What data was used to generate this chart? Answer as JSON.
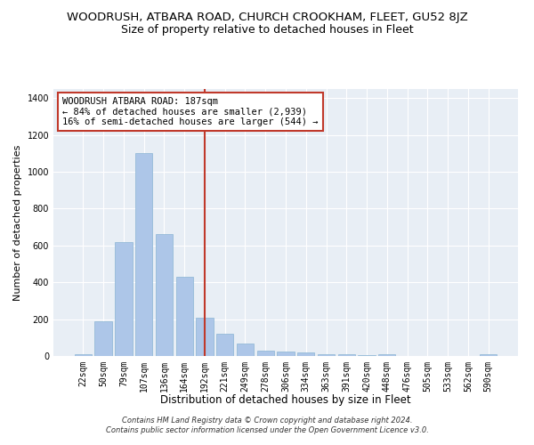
{
  "title": "WOODRUSH, ATBARA ROAD, CHURCH CROOKHAM, FLEET, GU52 8JZ",
  "subtitle": "Size of property relative to detached houses in Fleet",
  "xlabel": "Distribution of detached houses by size in Fleet",
  "ylabel": "Number of detached properties",
  "categories": [
    "22sqm",
    "50sqm",
    "79sqm",
    "107sqm",
    "136sqm",
    "164sqm",
    "192sqm",
    "221sqm",
    "249sqm",
    "278sqm",
    "306sqm",
    "334sqm",
    "363sqm",
    "391sqm",
    "420sqm",
    "448sqm",
    "476sqm",
    "505sqm",
    "533sqm",
    "562sqm",
    "590sqm"
  ],
  "values": [
    10,
    190,
    620,
    1100,
    660,
    430,
    210,
    120,
    70,
    30,
    25,
    20,
    10,
    8,
    3,
    8,
    2,
    0,
    0,
    0,
    8
  ],
  "bar_color": "#adc6e8",
  "bar_edge_color": "#8ab4d4",
  "vline_index": 6,
  "vline_color": "#c0392b",
  "annotation_text": "WOODRUSH ATBARA ROAD: 187sqm\n← 84% of detached houses are smaller (2,939)\n16% of semi-detached houses are larger (544) →",
  "annotation_box_color": "white",
  "annotation_box_edgecolor": "#c0392b",
  "ylim": [
    0,
    1450
  ],
  "yticks": [
    0,
    200,
    400,
    600,
    800,
    1000,
    1200,
    1400
  ],
  "bg_color": "#e8eef5",
  "footer_text": "Contains HM Land Registry data © Crown copyright and database right 2024.\nContains public sector information licensed under the Open Government Licence v3.0.",
  "title_fontsize": 9.5,
  "subtitle_fontsize": 9,
  "xlabel_fontsize": 8.5,
  "ylabel_fontsize": 8,
  "tick_fontsize": 7
}
